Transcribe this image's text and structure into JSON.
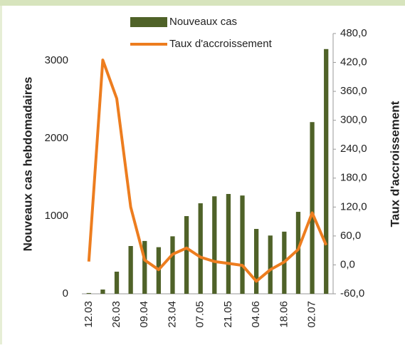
{
  "chart_data": {
    "type": "bar_line",
    "y_label": "Nouveaux cas hebdomadaires",
    "y2_label": "Taux d'accroissement",
    "legend": "top",
    "categories": [
      "12.03",
      null,
      "26.03",
      null,
      "09.04",
      null,
      "23.04",
      null,
      "07.05",
      null,
      "21.05",
      null,
      "04.06",
      null,
      "18.06",
      null,
      "02.07",
      null
    ],
    "series": [
      {
        "name": "Nouveaux cas",
        "type": "bar",
        "color": "#4f6228",
        "values": [
          10,
          55,
          285,
          615,
          680,
          600,
          740,
          1000,
          1165,
          1255,
          1285,
          1265,
          835,
          750,
          800,
          1055,
          2210,
          3150
        ]
      },
      {
        "name": "Taux d'accroissement",
        "type": "line",
        "axis": "y2",
        "color": "#ed7d1f",
        "values": [
          7,
          425,
          345,
          120,
          10,
          -10,
          22,
          35,
          16,
          7,
          3,
          -1,
          -34,
          -10,
          6,
          32,
          108,
          41
        ]
      }
    ],
    "ylim": [
      0,
      3350
    ],
    "yticks": [
      0,
      1000,
      2000,
      3000
    ],
    "y2lim": [
      -60,
      480
    ],
    "y2ticks": [
      {
        "value": -60,
        "label": "-60,0"
      },
      {
        "value": 0,
        "label": "0,0"
      },
      {
        "value": 60,
        "label": "60,0"
      },
      {
        "value": 120,
        "label": "120,0"
      },
      {
        "value": 180,
        "label": "180,0"
      },
      {
        "value": 240,
        "label": "240,0"
      },
      {
        "value": 300,
        "label": "300,0"
      },
      {
        "value": 360,
        "label": "360,0"
      },
      {
        "value": 420,
        "label": "420,0"
      },
      {
        "value": 480,
        "label": "480,0"
      }
    ],
    "grid": false
  }
}
